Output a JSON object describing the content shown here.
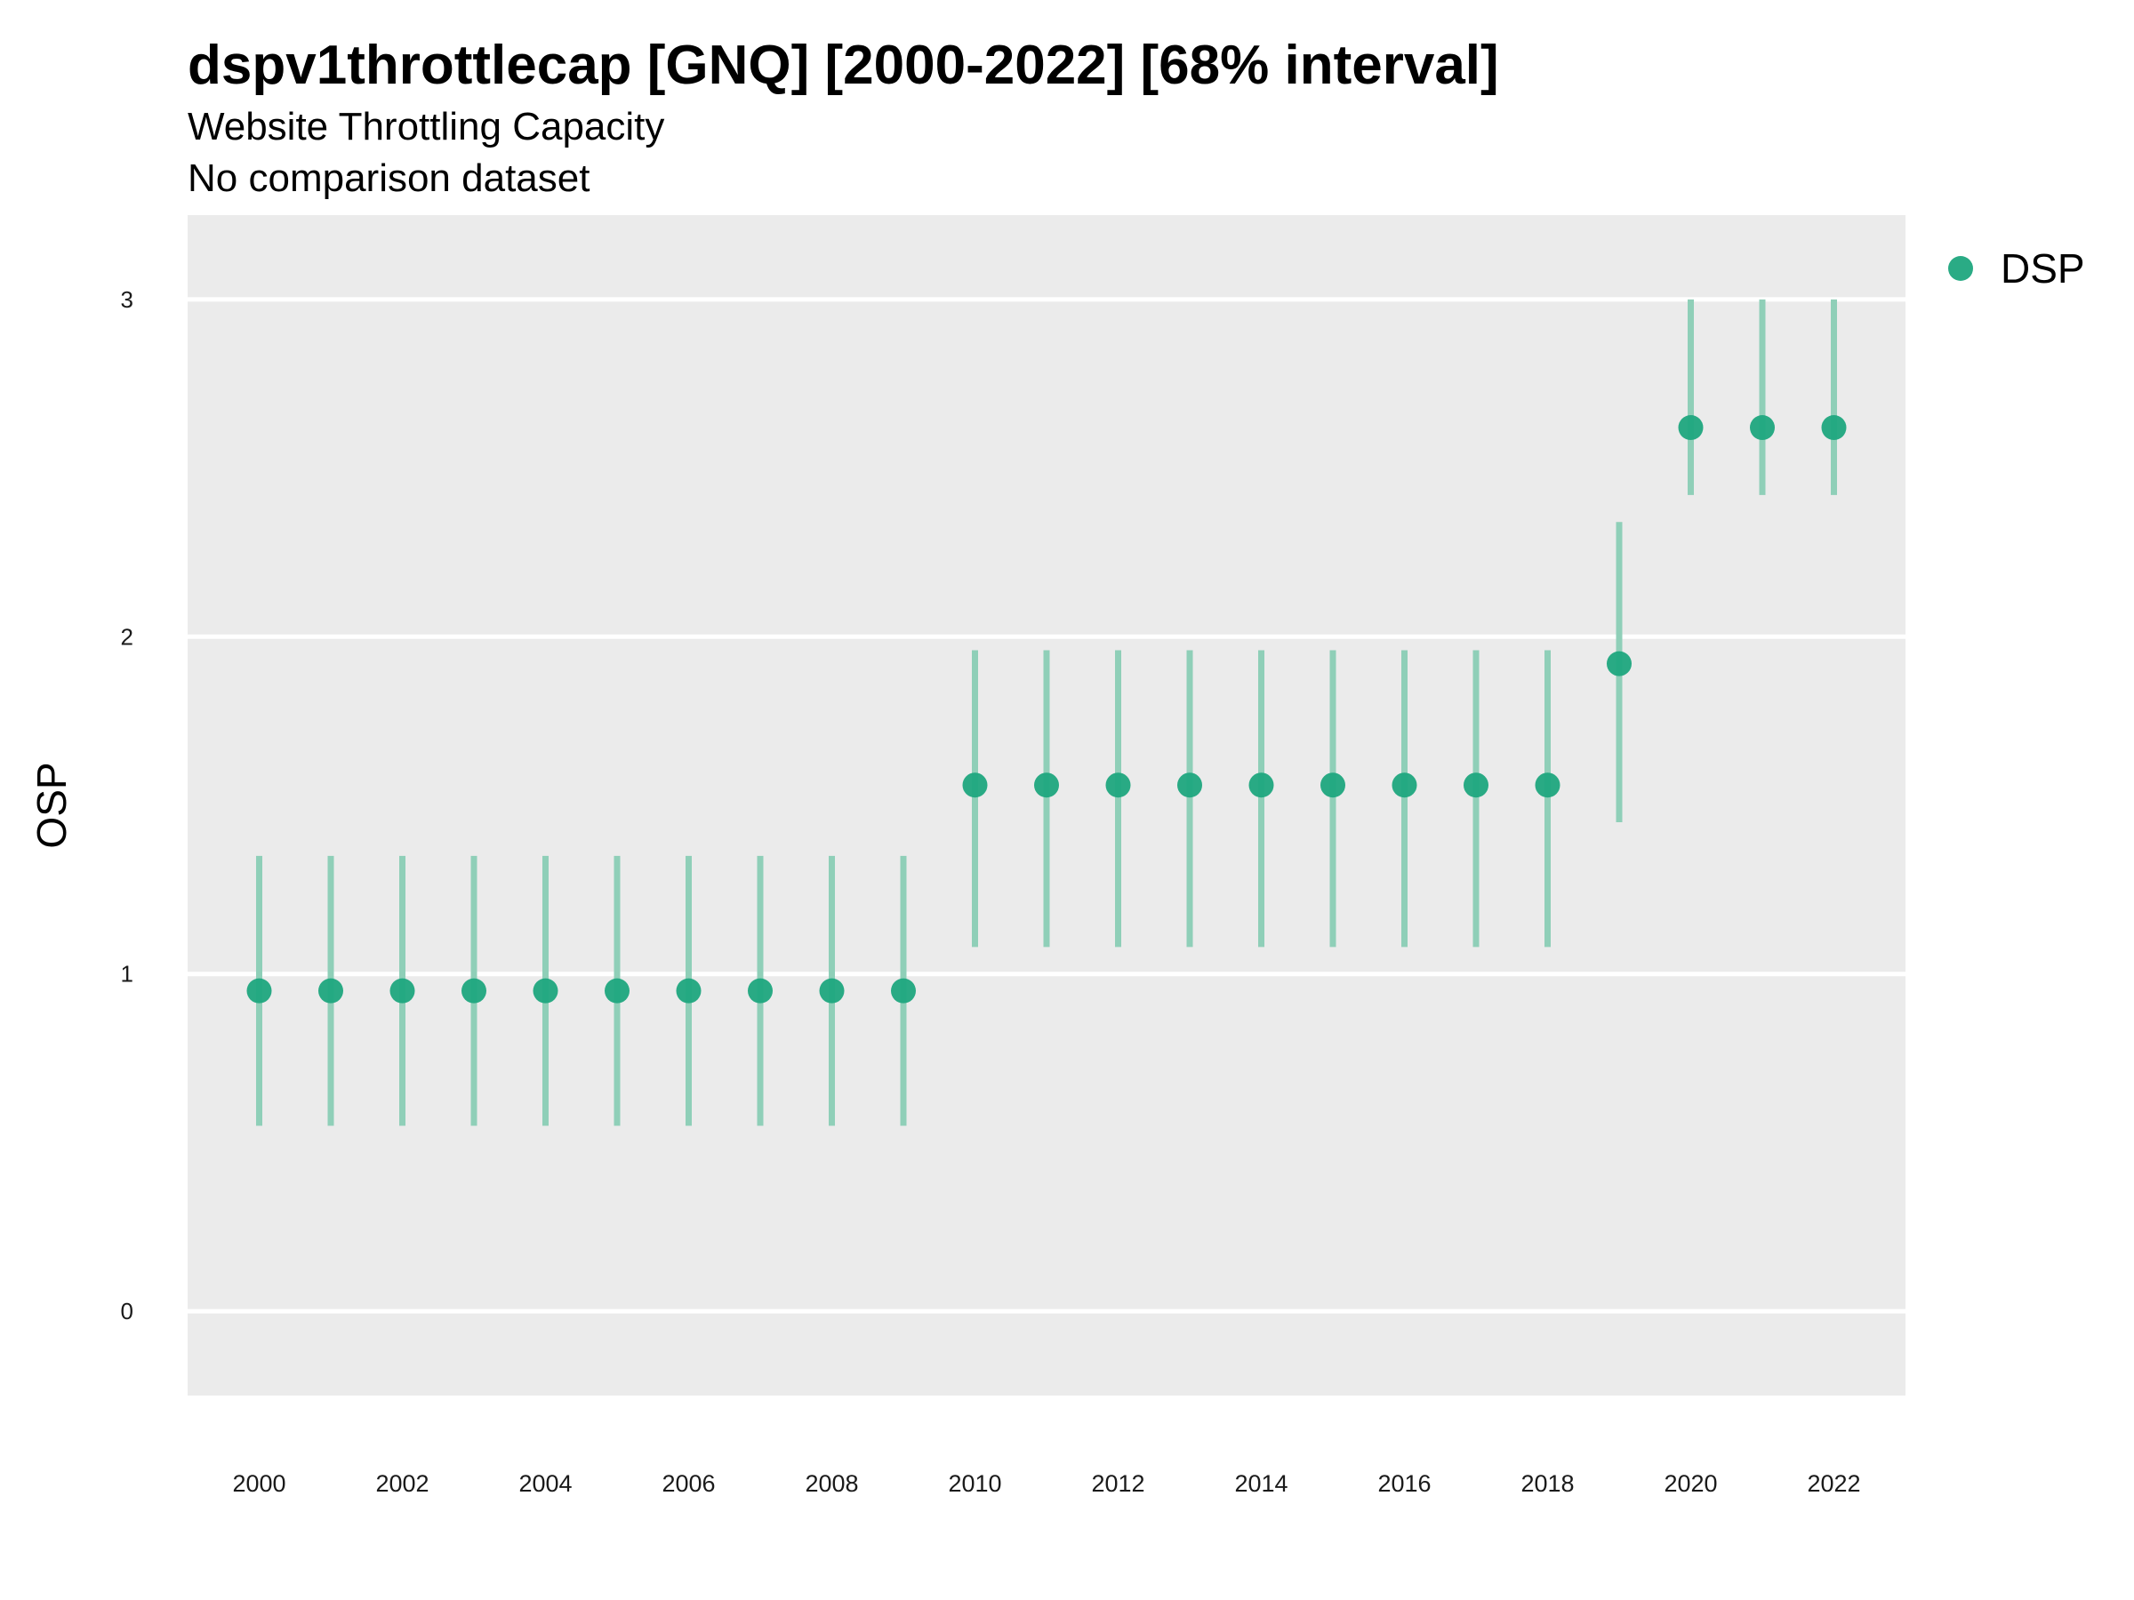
{
  "header": {
    "title": "dspv1throttlecap [GNQ] [2000-2022] [68% interval]",
    "subtitle": "Website Throttling Capacity",
    "caption": "No comparison dataset"
  },
  "colors": {
    "point": "#1fa67e",
    "interval": "#8fcfb8",
    "panel": "#ebebeb",
    "grid": "#ffffff"
  },
  "chart_data": {
    "type": "scatter",
    "title": "dspv1throttlecap [GNQ] [2000-2022] [68% interval]",
    "subtitle": "Website Throttling Capacity",
    "xlabel": "",
    "ylabel": "OSP",
    "xlim": [
      1999,
      2023
    ],
    "ylim": [
      -0.25,
      3.25
    ],
    "yticks": [
      0,
      1,
      2,
      3
    ],
    "xticks": [
      2000,
      2002,
      2004,
      2006,
      2008,
      2010,
      2012,
      2014,
      2016,
      2018,
      2020,
      2022
    ],
    "grid": true,
    "legend_position": "right",
    "series": [
      {
        "name": "DSP",
        "x": [
          2000,
          2001,
          2002,
          2003,
          2004,
          2005,
          2006,
          2007,
          2008,
          2009,
          2010,
          2011,
          2012,
          2013,
          2014,
          2015,
          2016,
          2017,
          2018,
          2019,
          2020,
          2021,
          2022
        ],
        "y": [
          0.95,
          0.95,
          0.95,
          0.95,
          0.95,
          0.95,
          0.95,
          0.95,
          0.95,
          0.95,
          1.56,
          1.56,
          1.56,
          1.56,
          1.56,
          1.56,
          1.56,
          1.56,
          1.56,
          1.92,
          2.62,
          2.62,
          2.62
        ],
        "lower": [
          0.55,
          0.55,
          0.55,
          0.55,
          0.55,
          0.55,
          0.55,
          0.55,
          0.55,
          0.55,
          1.08,
          1.08,
          1.08,
          1.08,
          1.08,
          1.08,
          1.08,
          1.08,
          1.08,
          1.45,
          2.42,
          2.42,
          2.42
        ],
        "upper": [
          1.35,
          1.35,
          1.35,
          1.35,
          1.35,
          1.35,
          1.35,
          1.35,
          1.35,
          1.35,
          1.96,
          1.96,
          1.96,
          1.96,
          1.96,
          1.96,
          1.96,
          1.96,
          1.96,
          2.34,
          3.0,
          3.0,
          3.0
        ]
      }
    ]
  }
}
